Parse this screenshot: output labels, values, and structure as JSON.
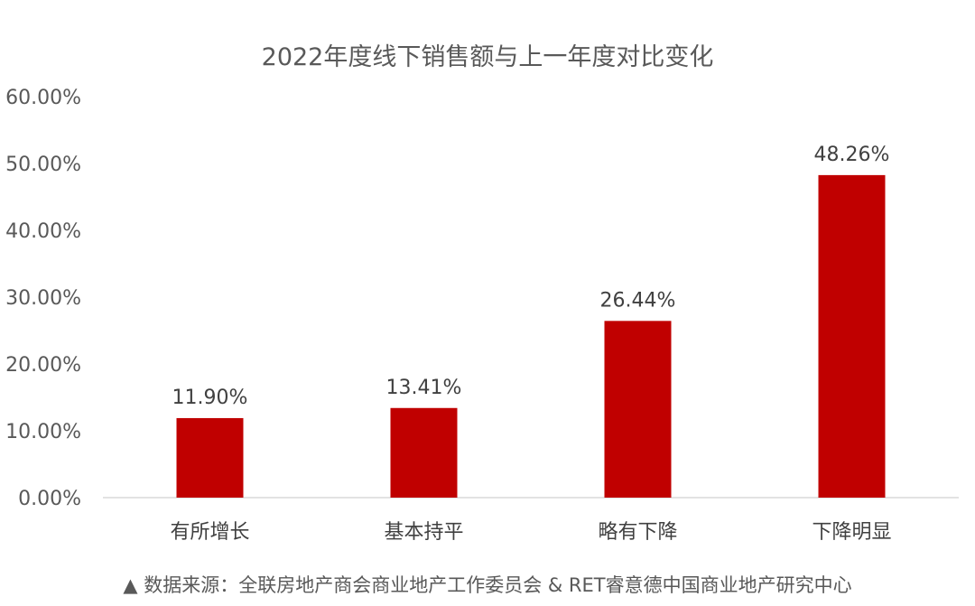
{
  "chart_data": {
    "type": "bar",
    "title": "2022年度线下销售额与上一年度对比变化",
    "categories": [
      "有所增长",
      "基本持平",
      "略有下降",
      "下降明显"
    ],
    "values": [
      11.9,
      13.41,
      26.44,
      48.26
    ],
    "value_labels": [
      "11.90%",
      "13.41%",
      "26.44%",
      "48.26%"
    ],
    "ylim": [
      0,
      60
    ],
    "yticks": [
      0,
      10,
      20,
      30,
      40,
      50,
      60
    ],
    "ytick_labels": [
      "0.00%",
      "10.00%",
      "20.00%",
      "30.00%",
      "40.00%",
      "50.00%",
      "60.00%"
    ],
    "xlabel": "",
    "ylabel": "",
    "grid": false,
    "legend": "none",
    "bar_color": "#C00000"
  },
  "source_note": "▲ 数据来源：全联房地产商会商业地产工作委员会 & RET睿意德中国商业地产研究中心"
}
